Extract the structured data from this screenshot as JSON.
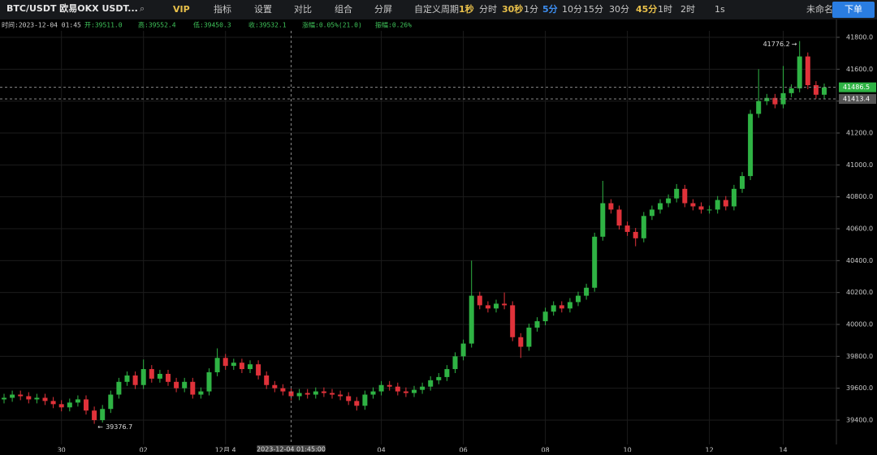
{
  "toolbar": {
    "symbol": "BTC/USDT 欧易OKX USDT...",
    "items": [
      {
        "text": "VIP",
        "color": "#e8c04a"
      },
      {
        "text": "指标",
        "color": "#c8c8c8"
      },
      {
        "text": "设置",
        "color": "#c8c8c8"
      },
      {
        "text": "对比",
        "color": "#c8c8c8"
      },
      {
        "text": "组合",
        "color": "#c8c8c8"
      },
      {
        "text": "分屏",
        "color": "#c8c8c8"
      },
      {
        "text": "自定义周期",
        "color": "#c8c8c8"
      },
      {
        "text": "1秒",
        "color": "#e8c04a"
      },
      {
        "text": "分时",
        "color": "#c8c8c8"
      },
      {
        "text": "30秒",
        "color": "#e8c04a"
      },
      {
        "text": "1分",
        "color": "#c8c8c8"
      },
      {
        "text": "5分",
        "color": "#3d8ef0"
      },
      {
        "text": "10分",
        "color": "#c8c8c8"
      },
      {
        "text": "15分",
        "color": "#c8c8c8"
      },
      {
        "text": "30分",
        "color": "#c8c8c8"
      },
      {
        "text": "45分",
        "color": "#e8c04a"
      },
      {
        "text": "1时",
        "color": "#c8c8c8"
      },
      {
        "text": "2时",
        "color": "#c8c8c8"
      },
      {
        "text": "1s",
        "color": "#c8c8c8"
      },
      {
        "text": "未命名",
        "color": "#c8c8c8"
      }
    ],
    "order": "下单"
  },
  "info": [
    "时间:2023-12-04 01:45",
    "开:39511.0",
    "高:39552.4",
    "低:39450.3",
    "收:39532.1",
    "涨幅:0.05%(21.0)",
    "振幅:0.26%"
  ],
  "chart_data": {
    "type": "candlestick",
    "up_color": "#2fb344",
    "down_color": "#e0323a",
    "open": [
      39530,
      39540,
      39560,
      39550,
      39530,
      39540,
      39520,
      39500,
      39480,
      39510,
      39530,
      39460,
      39400,
      39470,
      39560,
      39640,
      39680,
      39620,
      39720,
      39660,
      39690,
      39640,
      39600,
      39640,
      39560,
      39580,
      39700,
      39790,
      39740,
      39760,
      39720,
      39750,
      39680,
      39620,
      39600,
      39580,
      39550,
      39570,
      39560,
      39580,
      39570,
      39560,
      39550,
      39520,
      39490,
      39560,
      39580,
      39620,
      39610,
      39580,
      39570,
      39590,
      39610,
      39650,
      39670,
      39720,
      39800,
      39880,
      40180,
      40120,
      40100,
      40130,
      40120,
      39920,
      39860,
      39980,
      40020,
      40080,
      40120,
      40100,
      40140,
      40180,
      40230,
      40550,
      40760,
      40720,
      40620,
      40580,
      40540,
      40680,
      40720,
      40760,
      40790,
      40850,
      40760,
      40740,
      40720,
      40720,
      40780,
      40740,
      40850,
      40930,
      41320,
      41400,
      41420,
      41380,
      41450,
      41480,
      41680,
      41500,
      41440
    ],
    "high": [
      39565,
      39585,
      39585,
      39575,
      39565,
      39565,
      39545,
      39525,
      39535,
      39555,
      39555,
      39485,
      39495,
      39585,
      39665,
      39705,
      39705,
      39780,
      39745,
      39715,
      39715,
      39665,
      39665,
      39665,
      39605,
      39725,
      39850,
      39815,
      39785,
      39785,
      39775,
      39775,
      39705,
      39645,
      39625,
      39605,
      39595,
      39595,
      39605,
      39605,
      39595,
      39585,
      39575,
      39545,
      39585,
      39605,
      39645,
      39645,
      39635,
      39605,
      39615,
      39635,
      39675,
      39695,
      39745,
      39825,
      39905,
      40400,
      40205,
      40145,
      40155,
      40200,
      40145,
      39945,
      40005,
      40045,
      40105,
      40145,
      40145,
      40165,
      40205,
      40255,
      40575,
      40900,
      40785,
      40745,
      40645,
      40605,
      40705,
      40745,
      40785,
      40815,
      40880,
      40875,
      40785,
      40765,
      40745,
      40805,
      40805,
      40875,
      40955,
      41345,
      41600,
      41445,
      41445,
      41620,
      41505,
      41776.2,
      41705,
      41525,
      41510
    ],
    "low": [
      39505,
      39515,
      39525,
      39505,
      39505,
      39495,
      39475,
      39455,
      39455,
      39485,
      39435,
      39376.7,
      39385,
      39445,
      39535,
      39615,
      39595,
      39595,
      39635,
      39635,
      39615,
      39575,
      39575,
      39535,
      39535,
      39555,
      39675,
      39715,
      39715,
      39695,
      39695,
      39655,
      39595,
      39575,
      39555,
      39525,
      39525,
      39535,
      39535,
      39545,
      39535,
      39525,
      39495,
      39460,
      39465,
      39535,
      39555,
      39585,
      39555,
      39545,
      39545,
      39565,
      39585,
      39625,
      39645,
      39695,
      39775,
      39855,
      40095,
      40075,
      40075,
      40095,
      39895,
      39790,
      39835,
      39955,
      39995,
      40055,
      40075,
      40075,
      40115,
      40155,
      40205,
      40525,
      40695,
      40595,
      40555,
      40490,
      40515,
      40655,
      40695,
      40735,
      40765,
      40735,
      40715,
      40695,
      40695,
      40695,
      40715,
      40715,
      40825,
      40905,
      41295,
      41375,
      41355,
      41355,
      41425,
      41455,
      41475,
      41415,
      41415
    ],
    "close": [
      39540,
      39560,
      39550,
      39530,
      39540,
      39520,
      39500,
      39480,
      39510,
      39530,
      39460,
      39400,
      39470,
      39560,
      39640,
      39680,
      39620,
      39720,
      39660,
      39690,
      39640,
      39600,
      39640,
      39560,
      39580,
      39700,
      39790,
      39740,
      39760,
      39720,
      39750,
      39680,
      39620,
      39600,
      39580,
      39550,
      39570,
      39560,
      39580,
      39570,
      39560,
      39550,
      39520,
      39490,
      39560,
      39580,
      39620,
      39610,
      39580,
      39570,
      39590,
      39610,
      39650,
      39670,
      39720,
      39800,
      39880,
      40180,
      40120,
      40100,
      40130,
      40120,
      39920,
      39860,
      39980,
      40020,
      40080,
      40120,
      40100,
      40140,
      40180,
      40230,
      40550,
      40760,
      40720,
      40620,
      40580,
      40540,
      40680,
      40720,
      40760,
      40790,
      40850,
      40760,
      40740,
      40720,
      40720,
      40780,
      40740,
      40850,
      40930,
      41320,
      41400,
      41420,
      41380,
      41450,
      41480,
      41680,
      41500,
      41440,
      41486.5
    ],
    "ylim": [
      39300,
      41870
    ],
    "yticks": [
      {
        "value": 39400,
        "label": "39400.0"
      },
      {
        "value": 39600,
        "label": "39600.0"
      },
      {
        "value": 39800,
        "label": "39800.0"
      },
      {
        "value": 40000,
        "label": "40000.0"
      },
      {
        "value": 40200,
        "label": "40200.0"
      },
      {
        "value": 40400,
        "label": "40400.0"
      },
      {
        "value": 40600,
        "label": "40600.0"
      },
      {
        "value": 40800,
        "label": "40800.0"
      },
      {
        "value": 41000,
        "label": "41000.0"
      },
      {
        "value": 41200,
        "label": "41200.0"
      },
      {
        "value": 41400,
        "label": "41400.0"
      },
      {
        "value": 41600,
        "label": "41600.0"
      },
      {
        "value": 41800,
        "label": "41800.0"
      }
    ],
    "xticks": [
      {
        "value": 7,
        "label": "30"
      },
      {
        "value": 17,
        "label": "02"
      },
      {
        "value": 27,
        "label": "12月 4"
      },
      {
        "value": 46,
        "label": "04"
      },
      {
        "value": 56,
        "label": "06"
      },
      {
        "value": 66,
        "label": "08"
      },
      {
        "value": 76,
        "label": "10"
      },
      {
        "value": 86,
        "label": "12"
      },
      {
        "value": 95,
        "label": "14"
      }
    ],
    "crosshair": {
      "value": 35,
      "label": "2023-12-04 01:45:00"
    },
    "price_lines": [
      {
        "value": 41486.5,
        "color": "#2fb344"
      },
      {
        "value": 41413.4,
        "color": "#555555"
      }
    ],
    "grid": true
  }
}
